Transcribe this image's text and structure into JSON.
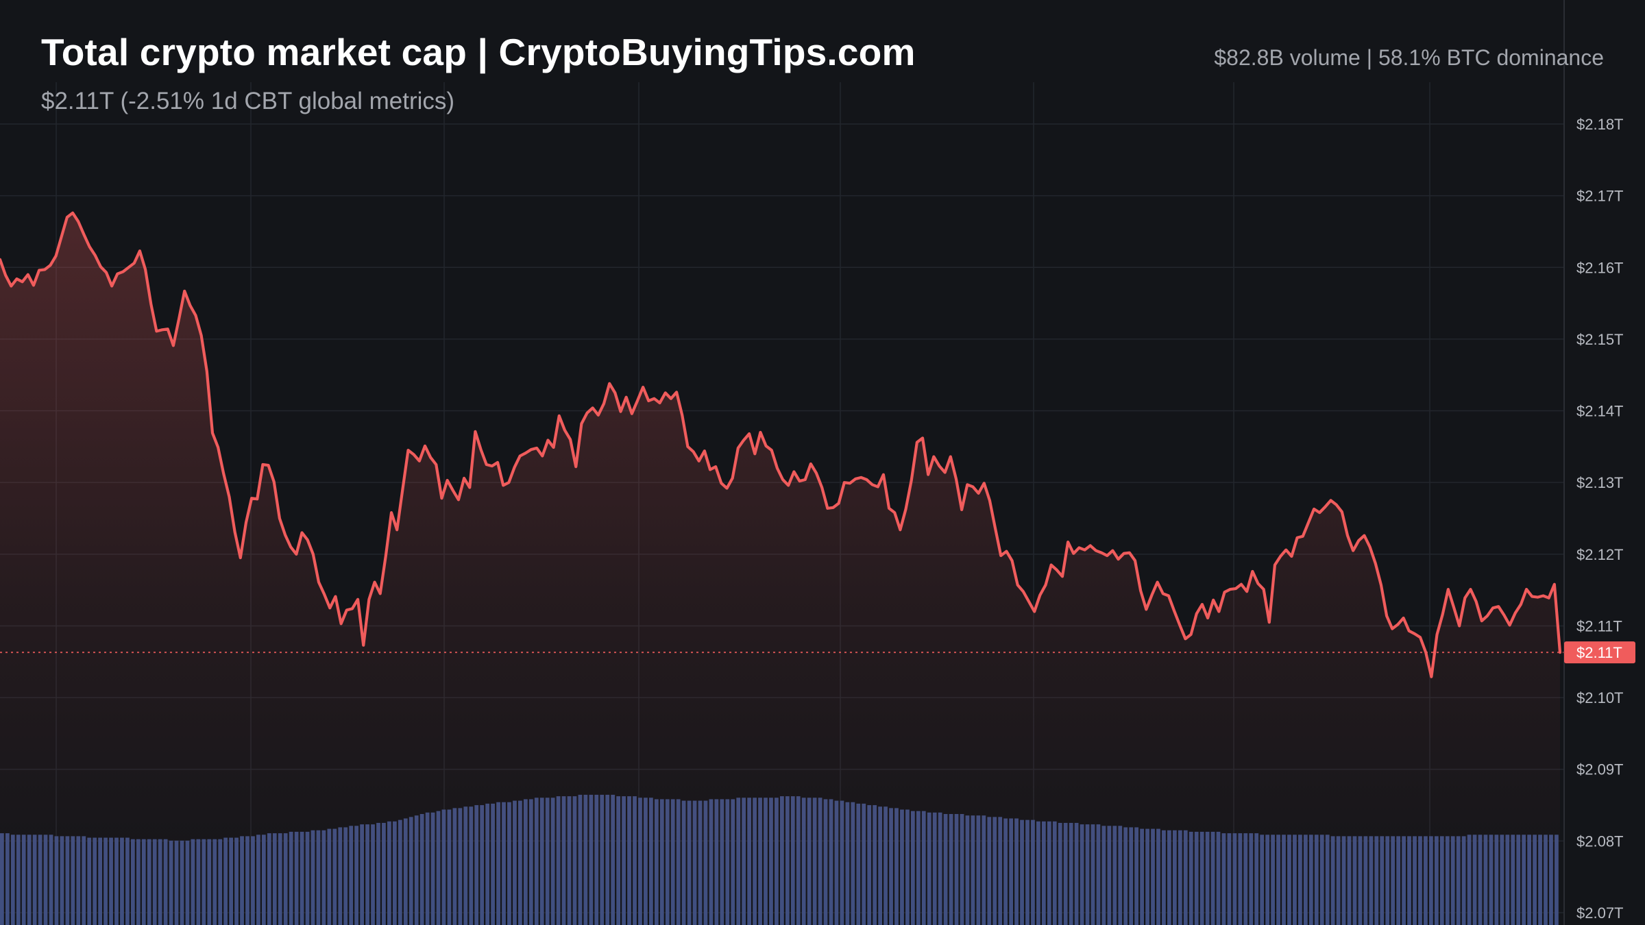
{
  "header": {
    "title": "Total crypto market cap | CryptoBuyingTips.com",
    "subtitle": "$2.11T (-2.51% 1d CBT global metrics)",
    "meta": "$82.8B volume | 58.1% BTC dominance"
  },
  "colors": {
    "background": "#131519",
    "line": "#f05c5c",
    "area_fill_top": "#f05c5c",
    "volume": "#3f4f80",
    "grid": "#23262d",
    "last_price_label_bg": "#f05c5c",
    "axis_text": "#b9bcc3"
  },
  "chart_data": {
    "type": "line",
    "title": "Total crypto market cap | CryptoBuyingTips.com",
    "xlabel": "",
    "ylabel": "",
    "ylim": [
      2.07,
      2.18
    ],
    "y_unit": "trillion USD",
    "grid": true,
    "y_ticks": [
      "$2.18T",
      "$2.17T",
      "$2.16T",
      "$2.15T",
      "$2.14T",
      "$2.13T",
      "$2.12T",
      "$2.11T",
      "$2.10T",
      "$2.09T",
      "$2.08T",
      "$2.07T"
    ],
    "last_value_label": "$2.11T",
    "last_value": 2.1063,
    "series": [
      {
        "values": [
          2.1611,
          2.1589,
          2.1574,
          2.1584,
          2.158,
          2.159,
          2.1575,
          2.1596,
          2.1597,
          2.1603,
          2.1616,
          2.1643,
          2.167,
          2.1676,
          2.1664,
          2.1646,
          2.1629,
          2.1617,
          2.1601,
          2.1593,
          2.1574,
          2.1591,
          2.1594,
          2.16,
          2.1606,
          2.1623,
          2.1597,
          2.1549,
          2.1511,
          2.1513,
          2.1514,
          2.1491,
          2.1528,
          2.1567,
          2.1547,
          2.1533,
          2.1505,
          2.1455,
          2.1369,
          2.1349,
          2.1312,
          2.128,
          2.1231,
          2.1195,
          2.1244,
          2.1278,
          2.1277,
          2.1325,
          2.1324,
          2.1301,
          2.125,
          2.1227,
          2.121,
          2.12,
          2.123,
          2.122,
          2.12,
          2.1161,
          2.1144,
          2.1125,
          2.1141,
          2.1103,
          2.1122,
          2.1124,
          2.1137,
          2.1073,
          2.1137,
          2.1161,
          2.1145,
          2.1198,
          2.1258,
          2.1234,
          2.129,
          2.1345,
          2.1339,
          2.133,
          2.1351,
          2.1335,
          2.1325,
          2.1278,
          2.1303,
          2.1289,
          2.1276,
          2.1306,
          2.1293,
          2.1371,
          2.1346,
          2.1325,
          2.1323,
          2.1328,
          2.1296,
          2.13,
          2.1321,
          2.1337,
          2.1341,
          2.1346,
          2.1348,
          2.1337,
          2.1359,
          2.1349,
          2.1393,
          2.1373,
          2.136,
          2.1322,
          2.1382,
          2.1397,
          2.1404,
          2.1394,
          2.141,
          2.1438,
          2.1425,
          2.1399,
          2.1419,
          2.1396,
          2.1414,
          2.1433,
          2.1414,
          2.1417,
          2.1411,
          2.1425,
          2.1417,
          2.1426,
          2.1394,
          2.135,
          2.1343,
          2.133,
          2.1344,
          2.1318,
          2.1322,
          2.1299,
          2.1292,
          2.1306,
          2.1348,
          2.1359,
          2.1368,
          2.134,
          2.137,
          2.1351,
          2.1345,
          2.132,
          2.1304,
          2.1296,
          2.1315,
          2.1302,
          2.1304,
          2.1326,
          2.1313,
          2.1293,
          2.1264,
          2.1265,
          2.1271,
          2.13,
          2.1299,
          2.1305,
          2.1307,
          2.1304,
          2.1297,
          2.1294,
          2.1311,
          2.1264,
          2.1258,
          2.1234,
          2.1263,
          2.1303,
          2.1356,
          2.1362,
          2.1311,
          2.1336,
          2.1323,
          2.1314,
          2.1336,
          2.1305,
          2.1262,
          2.1297,
          2.1294,
          2.1285,
          2.1299,
          2.1275,
          2.1236,
          2.1198,
          2.1204,
          2.1191,
          2.1157,
          2.1148,
          2.1134,
          2.112,
          2.1143,
          2.1157,
          2.1185,
          2.1178,
          2.1169,
          2.1217,
          2.1201,
          2.1209,
          2.1206,
          2.1212,
          2.1205,
          2.1202,
          2.1198,
          2.1205,
          2.1193,
          2.1201,
          2.1202,
          2.1191,
          2.1149,
          2.1123,
          2.1143,
          2.1161,
          2.1145,
          2.1142,
          2.1121,
          2.1101,
          2.1082,
          2.1088,
          2.1117,
          2.113,
          2.1111,
          2.1136,
          2.112,
          2.1147,
          2.1151,
          2.1152,
          2.1158,
          2.1148,
          2.1176,
          2.1159,
          2.1151,
          2.1105,
          2.1185,
          2.1197,
          2.1206,
          2.1197,
          2.1223,
          2.1225,
          2.1244,
          2.1263,
          2.1258,
          2.1266,
          2.1275,
          2.1269,
          2.1259,
          2.1226,
          2.1205,
          2.1219,
          2.1226,
          2.121,
          2.1187,
          2.1157,
          2.1114,
          2.1096,
          2.1102,
          2.1111,
          2.1093,
          2.1089,
          2.1084,
          2.1063,
          2.1029,
          2.1088,
          2.1116,
          2.1151,
          2.1126,
          2.11,
          2.1139,
          2.1151,
          2.1134,
          2.1107,
          2.1114,
          2.1125,
          2.1127,
          2.1115,
          2.1101,
          2.1118,
          2.113,
          2.1151,
          2.1141,
          2.114,
          2.1142,
          2.1139,
          2.1158,
          2.1063
        ]
      }
    ],
    "volume": {
      "series_name": "Volume",
      "values": [
        62,
        62,
        61,
        61,
        61,
        61,
        61,
        61,
        61,
        61,
        60,
        60,
        60,
        60,
        60,
        60,
        59,
        59,
        59,
        59,
        59,
        59,
        59,
        59,
        58,
        58,
        58,
        58,
        58,
        58,
        58,
        57,
        57,
        57,
        57,
        58,
        58,
        58,
        58,
        58,
        58,
        59,
        59,
        59,
        60,
        60,
        60,
        61,
        61,
        62,
        62,
        62,
        62,
        63,
        63,
        63,
        63,
        64,
        64,
        64,
        65,
        65,
        66,
        66,
        67,
        67,
        68,
        68,
        68,
        69,
        69,
        70,
        70,
        71,
        72,
        73,
        74,
        75,
        76,
        76,
        77,
        78,
        78,
        79,
        79,
        80,
        80,
        81,
        81,
        82,
        82,
        83,
        83,
        83,
        84,
        84,
        85,
        85,
        86,
        86,
        86,
        86,
        87,
        87,
        87,
        87,
        88,
        88,
        88,
        88,
        88,
        88,
        88,
        87,
        87,
        87,
        87,
        86,
        86,
        86,
        85,
        85,
        85,
        85,
        85,
        84,
        84,
        84,
        84,
        84,
        85,
        85,
        85,
        85,
        85,
        86,
        86,
        86,
        86,
        86,
        86,
        86,
        86,
        87,
        87,
        87,
        87,
        86,
        86,
        86,
        86,
        85,
        85,
        84,
        84,
        83,
        83,
        82,
        82,
        81,
        81,
        80,
        80,
        79,
        79,
        78,
        78,
        77,
        77,
        77,
        76,
        76,
        76,
        75,
        75,
        75,
        75,
        74,
        74,
        74,
        74,
        73,
        73,
        73,
        72,
        72,
        72,
        71,
        71,
        71,
        70,
        70,
        70,
        70,
        69,
        69,
        69,
        69,
        68,
        68,
        68,
        68,
        67,
        67,
        67,
        67,
        66,
        66,
        66,
        65,
        65,
        65,
        65,
        64,
        64,
        64,
        64,
        64,
        63,
        63,
        63,
        63,
        63,
        63,
        62,
        62,
        62,
        62,
        62,
        62,
        62,
        61,
        61,
        61,
        61,
        61,
        61,
        61,
        61,
        61,
        61,
        61,
        61,
        61,
        60,
        60,
        60,
        60,
        60,
        60,
        60,
        60,
        60,
        60,
        60,
        60,
        60,
        60,
        60,
        60,
        60,
        60,
        60,
        60,
        60,
        60,
        60,
        60,
        60,
        61,
        61,
        61,
        61,
        61,
        61,
        61,
        61,
        61,
        61,
        61,
        61,
        61,
        61,
        61,
        61,
        61
      ]
    }
  }
}
